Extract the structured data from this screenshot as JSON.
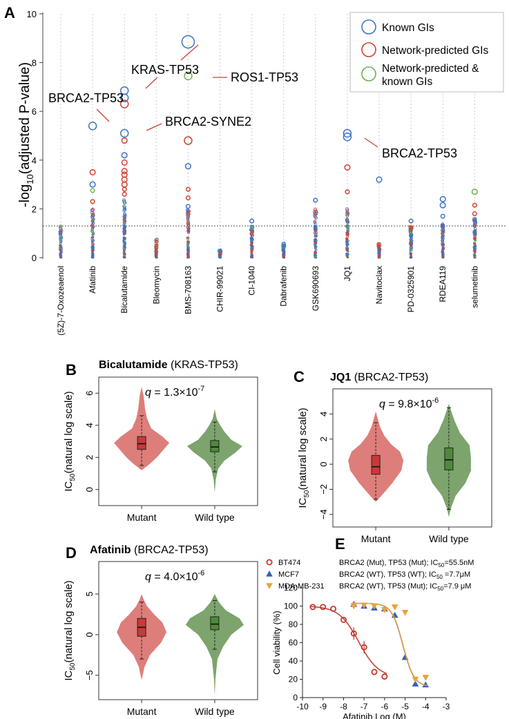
{
  "colors": {
    "known": "#3a74c4",
    "predicted": "#d2402f",
    "both": "#6ab04c",
    "mutant_fill": "#d9706c",
    "wt_fill": "#6e9a5c",
    "mutant_box": "#c8393a",
    "wt_box": "#4e8a3a",
    "mdamb": "#e8a33d",
    "mcf7": "#3a5fb5",
    "bt474": "#c0392b"
  },
  "chart_data": [
    {
      "panel": "A",
      "type": "scatter",
      "ylabel_parts": [
        "-log",
        "10",
        "(adjusted P-value)"
      ],
      "ylim": [
        0,
        10
      ],
      "yticks": [
        "0",
        "2",
        "4",
        "6",
        "8",
        "10"
      ],
      "threshold": 1.3,
      "categories": [
        "(5Z)-7-Oxozeaenol",
        "Afatinib",
        "Bicalutamide",
        "Bleomycin",
        "BMS-708163",
        "CHIR-99021",
        "CI-1040",
        "Dabrafenib",
        "GSK690693",
        "JQ1",
        "Navitoclax",
        "PD-0325901",
        "RDEA119",
        "selumetinib"
      ],
      "legend": [
        {
          "label": "Known GIs",
          "kind": "known"
        },
        {
          "label": "Network-predicted GIs",
          "kind": "predicted"
        },
        {
          "label": "Network-predicted &",
          "label2": "known GIs",
          "kind": "both"
        }
      ],
      "highlight_points": [
        {
          "cat": "Afatinib",
          "y": 5.4,
          "kind": "known",
          "size": "lg"
        },
        {
          "cat": "Afatinib",
          "y": 3.5,
          "kind": "predicted",
          "size": "md"
        },
        {
          "cat": "Afatinib",
          "y": 3.0,
          "kind": "known",
          "size": "md"
        },
        {
          "cat": "Afatinib",
          "y": 2.75,
          "kind": "both",
          "size": "sm"
        },
        {
          "cat": "Afatinib",
          "y": 2.3,
          "kind": "predicted",
          "size": "sm"
        },
        {
          "cat": "Bicalutamide",
          "y": 6.85,
          "kind": "known",
          "size": "lg"
        },
        {
          "cat": "Bicalutamide",
          "y": 6.55,
          "kind": "known",
          "size": "lg"
        },
        {
          "cat": "Bicalutamide",
          "y": 6.3,
          "kind": "predicted",
          "size": "lg"
        },
        {
          "cat": "Bicalutamide",
          "y": 5.1,
          "kind": "known",
          "size": "lg"
        },
        {
          "cat": "Bicalutamide",
          "y": 4.8,
          "kind": "predicted",
          "size": "md"
        },
        {
          "cat": "Bicalutamide",
          "y": 4.2,
          "kind": "known",
          "size": "md"
        },
        {
          "cat": "Bicalutamide",
          "y": 3.9,
          "kind": "predicted",
          "size": "md"
        },
        {
          "cat": "Bicalutamide",
          "y": 3.55,
          "kind": "predicted",
          "size": "md"
        },
        {
          "cat": "Bicalutamide",
          "y": 3.4,
          "kind": "predicted",
          "size": "md"
        },
        {
          "cat": "Bicalutamide",
          "y": 3.2,
          "kind": "predicted",
          "size": "md"
        },
        {
          "cat": "Bicalutamide",
          "y": 3.0,
          "kind": "predicted",
          "size": "md"
        },
        {
          "cat": "Bicalutamide",
          "y": 2.8,
          "kind": "predicted",
          "size": "sm"
        },
        {
          "cat": "Bicalutamide",
          "y": 2.6,
          "kind": "predicted",
          "size": "sm"
        },
        {
          "cat": "BMS-708163",
          "y": 8.85,
          "kind": "known",
          "size": "xl"
        },
        {
          "cat": "BMS-708163",
          "y": 7.45,
          "kind": "both",
          "size": "lg"
        },
        {
          "cat": "BMS-708163",
          "y": 4.8,
          "kind": "predicted",
          "size": "lg"
        },
        {
          "cat": "BMS-708163",
          "y": 3.75,
          "kind": "known",
          "size": "md"
        },
        {
          "cat": "BMS-708163",
          "y": 2.8,
          "kind": "predicted",
          "size": "sm"
        },
        {
          "cat": "BMS-708163",
          "y": 2.45,
          "kind": "predicted",
          "size": "sm"
        },
        {
          "cat": "BMS-708163",
          "y": 2.1,
          "kind": "known",
          "size": "sm"
        },
        {
          "cat": "JQ1",
          "y": 5.1,
          "kind": "known",
          "size": "lg"
        },
        {
          "cat": "JQ1",
          "y": 4.95,
          "kind": "known",
          "size": "lg"
        },
        {
          "cat": "JQ1",
          "y": 3.7,
          "kind": "predicted",
          "size": "md"
        },
        {
          "cat": "JQ1",
          "y": 2.7,
          "kind": "predicted",
          "size": "sm"
        },
        {
          "cat": "Navitoclax",
          "y": 3.2,
          "kind": "known",
          "size": "md"
        },
        {
          "cat": "GSK690693",
          "y": 2.35,
          "kind": "known",
          "size": "sm"
        },
        {
          "cat": "RDEA119",
          "y": 2.4,
          "kind": "known",
          "size": "md"
        },
        {
          "cat": "RDEA119",
          "y": 2.15,
          "kind": "known",
          "size": "md"
        },
        {
          "cat": "RDEA119",
          "y": 1.7,
          "kind": "known",
          "size": "sm"
        },
        {
          "cat": "selumetinib",
          "y": 2.7,
          "kind": "both",
          "size": "md"
        },
        {
          "cat": "selumetinib",
          "y": 2.15,
          "kind": "predicted",
          "size": "sm"
        },
        {
          "cat": "selumetinib",
          "y": 1.8,
          "kind": "predicted",
          "size": "sm"
        },
        {
          "cat": "CI-1040",
          "y": 1.5,
          "kind": "known",
          "size": "sm"
        },
        {
          "cat": "PD-0325901",
          "y": 1.5,
          "kind": "known",
          "size": "sm"
        }
      ],
      "column_max": {
        "(5Z)-7-Oxozeaenol": 1.3,
        "Afatinib": 2.0,
        "Bicalutamide": 2.5,
        "Bleomycin": 0.75,
        "BMS-708163": 2.0,
        "CHIR-99021": 0.3,
        "CI-1040": 1.3,
        "Dabrafenib": 0.6,
        "GSK690693": 2.0,
        "JQ1": 2.0,
        "Navitoclax": 0.6,
        "PD-0325901": 1.3,
        "RDEA119": 1.4,
        "selumetinib": 1.6
      },
      "annotations": [
        {
          "text": "KRAS-TP53"
        },
        {
          "text": "ROS1-TP53"
        },
        {
          "text": "BRCA2-TP53"
        },
        {
          "text": "BRCA2-SYNE2"
        },
        {
          "text": "BRCA2-TP53"
        }
      ]
    },
    {
      "panel": "B",
      "type": "violin",
      "drug": "Bicalutamide",
      "pair": "(KRAS-TP53)",
      "q_base": "= 1.3×10",
      "q_exp": "-7",
      "ylim": [
        -1,
        7
      ],
      "yticks": [
        "0",
        "2",
        "4",
        "6"
      ],
      "categories": [
        "Mutant",
        "Wild type"
      ],
      "boxes": [
        {
          "median": 2.85,
          "q1": 2.5,
          "q3": 3.3,
          "wlo": 1.5,
          "whi": 4.6
        },
        {
          "median": 2.65,
          "q1": 2.35,
          "q3": 3.05,
          "wlo": 1.1,
          "whi": 4.2
        }
      ]
    },
    {
      "panel": "C",
      "type": "violin",
      "drug": "JQ1",
      "pair": "(BRCA2-TP53)",
      "q_base": "= 9.8×10",
      "q_exp": "-6",
      "ylim": [
        -5,
        6
      ],
      "yticks": [
        "−4",
        "−2",
        "0",
        "2",
        "4"
      ],
      "categories": [
        "Mutant",
        "Wild type"
      ],
      "boxes": [
        {
          "median": -0.2,
          "q1": -0.8,
          "q3": 0.7,
          "wlo": -2.8,
          "whi": 3.3
        },
        {
          "median": 0.35,
          "q1": -0.45,
          "q3": 1.3,
          "wlo": -3.6,
          "whi": 4.5
        }
      ]
    },
    {
      "panel": "D",
      "type": "violin",
      "drug": "Afatinib",
      "pair": "(BRCA2-TP53)",
      "q_base": "= 4.0×10",
      "q_exp": "-6",
      "ylim": [
        -8,
        9
      ],
      "yticks": [
        "−5",
        "0",
        "5"
      ],
      "categories": [
        "Mutant",
        "Wild type"
      ],
      "boxes": [
        {
          "median": 0.9,
          "q1": -0.2,
          "q3": 2.0,
          "wlo": -3.0,
          "whi": 4.0
        },
        {
          "median": 1.3,
          "q1": 0.6,
          "q3": 2.2,
          "wlo": -1.8,
          "whi": 4.2
        }
      ]
    },
    {
      "panel": "E",
      "type": "line",
      "xlabel": "Afatinib Log (M)",
      "ylabel": "Cell viability (%)",
      "xlim": [
        -10,
        -3
      ],
      "ylim": [
        0,
        120
      ],
      "xticks": [
        "-10",
        "-9",
        "-8",
        "-7",
        "-6",
        "-5",
        "-4",
        "-3"
      ],
      "yticks": [
        "0",
        "20",
        "40",
        "60",
        "80",
        "100",
        "120"
      ],
      "series": [
        {
          "name": "BT474",
          "desc_main": "BRCA2 (Mut), TP53 (Mut); IC",
          "desc_sub": "50",
          "desc_tail": "=55.5nM",
          "marker": "circle",
          "logIC50": -7.26,
          "x": [
            -9.5,
            -9.0,
            -8.5,
            -8.0,
            -7.5,
            -7.0,
            -6.5,
            -6.0
          ],
          "y": [
            99,
            99,
            97,
            85,
            70,
            55,
            28,
            23
          ]
        },
        {
          "name": "MCF7",
          "desc_main": "BRCA2 (WT), TP53 (WT); IC",
          "desc_sub": "50",
          "desc_tail": " =7.7μM",
          "marker": "triangle",
          "logIC50": -5.11,
          "x": [
            -7.5,
            -7.0,
            -6.5,
            -6.0,
            -5.5,
            -5.0,
            -4.5,
            -4.0
          ],
          "y": [
            102,
            100,
            98,
            97,
            90,
            44,
            15,
            14
          ]
        },
        {
          "name": "MDA-MB-231",
          "desc_main": "BRCA2 (WT), TP53 (Mut); IC",
          "desc_sub": "50",
          "desc_tail": "=7.9 μM",
          "marker": "triangle-down",
          "logIC50": -5.1,
          "x": [
            -7.5,
            -7.0,
            -6.5,
            -6.0,
            -5.5,
            -5.0,
            -4.5,
            -4.0
          ],
          "y": [
            100,
            101,
            100,
            96,
            99,
            93,
            20,
            22
          ]
        }
      ]
    }
  ]
}
